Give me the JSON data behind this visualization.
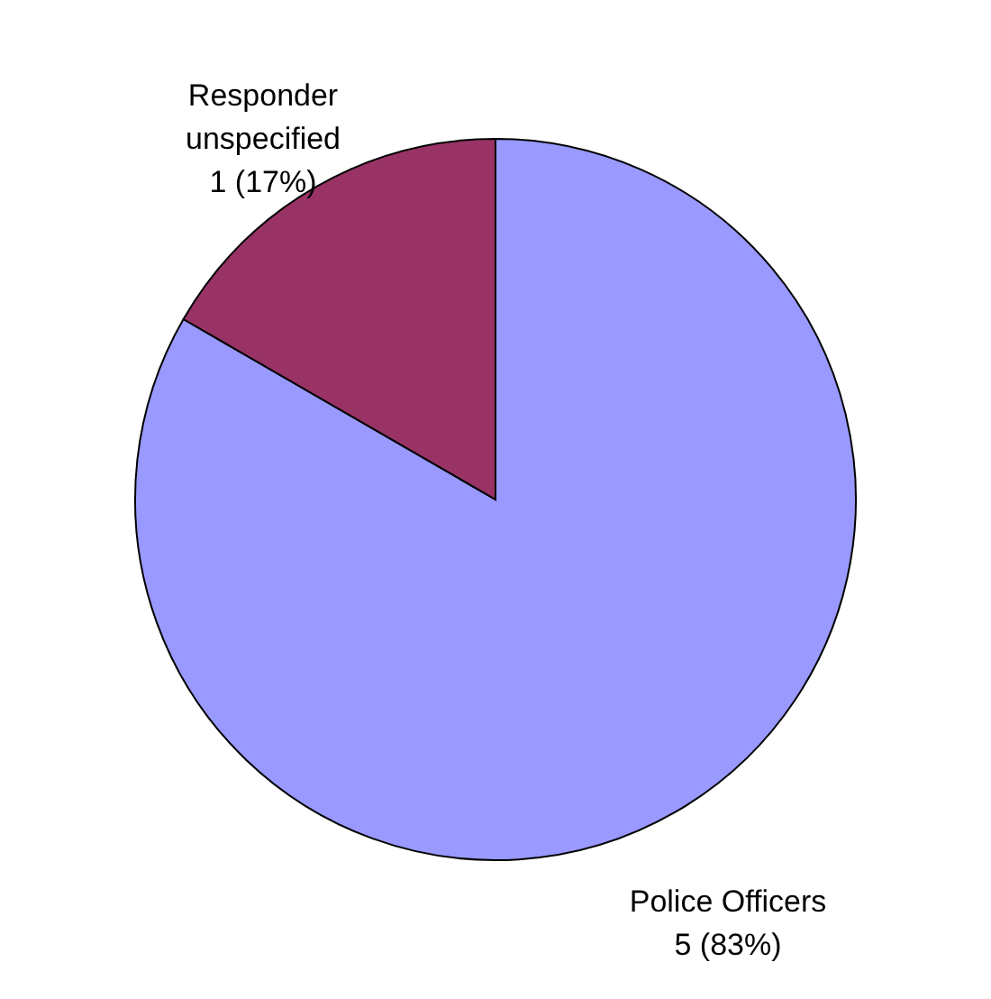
{
  "chart_data": {
    "type": "pie",
    "categories": [
      "Police Officers",
      "Responder unspecified"
    ],
    "values": [
      5,
      1
    ],
    "colors": [
      "#9999ff",
      "#993366"
    ],
    "value_labels": [
      "5 (83%)",
      "1 (17%)"
    ]
  }
}
